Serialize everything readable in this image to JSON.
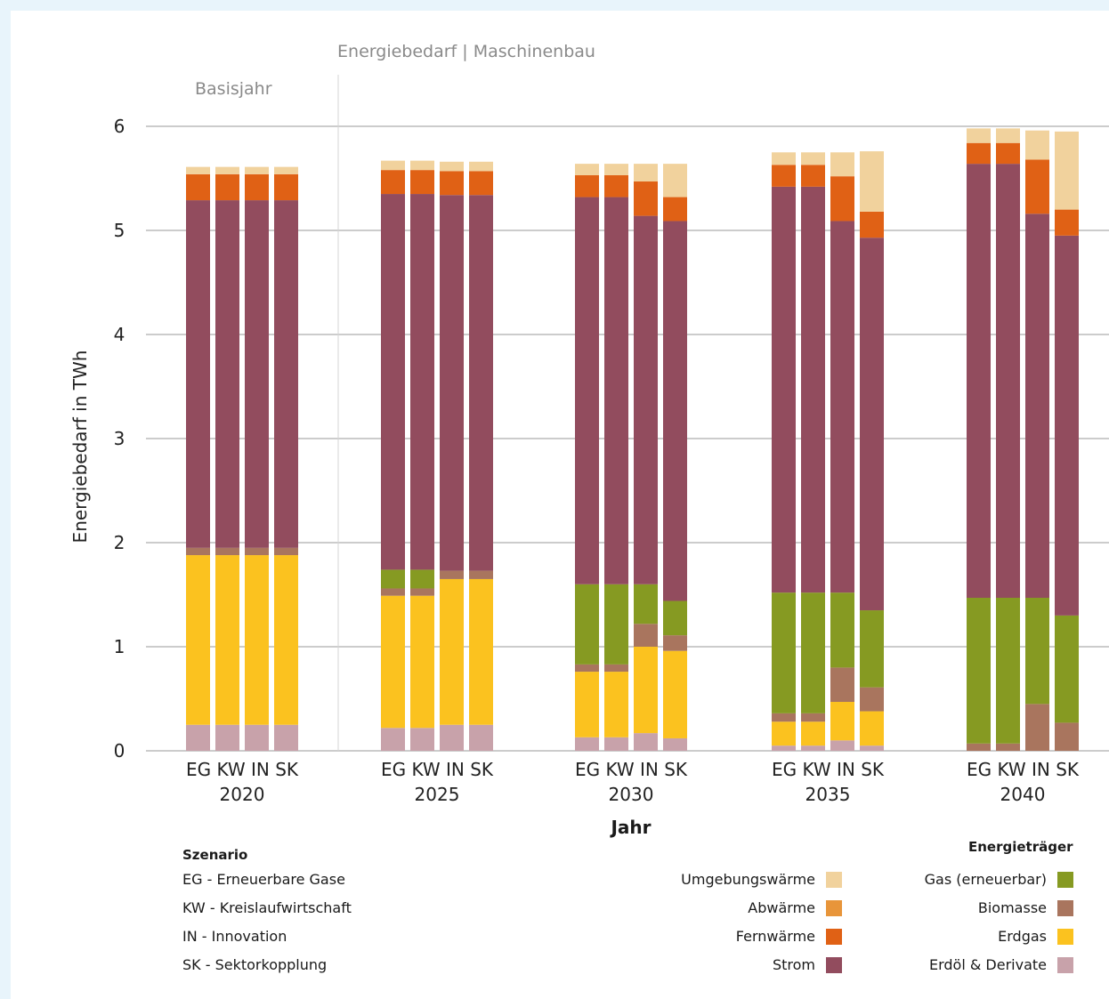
{
  "chart_data": {
    "type": "bar",
    "stacked": true,
    "title": "Energiebedarf | Maschinenbau",
    "annotation": "Basisjahr",
    "ylabel": "Energiebedarf in TWh",
    "xlabel": "Jahr",
    "ylim": [
      0,
      6
    ],
    "yticks": [
      0,
      1,
      2,
      3,
      4,
      5,
      6
    ],
    "grid": true,
    "groups": [
      "2020",
      "2025",
      "2030",
      "2035",
      "2040"
    ],
    "scenarios": [
      "EG",
      "KW",
      "IN",
      "SK"
    ],
    "scenario_label": "EG KW IN SK",
    "series": [
      {
        "name": "Erdöl & Derivate",
        "color": "#c8a2aa",
        "values": [
          [
            0.25,
            0.25,
            0.25,
            0.25
          ],
          [
            0.22,
            0.22,
            0.25,
            0.25
          ],
          [
            0.13,
            0.13,
            0.17,
            0.12
          ],
          [
            0.05,
            0.05,
            0.1,
            0.05
          ],
          [
            0,
            0,
            0,
            0
          ]
        ]
      },
      {
        "name": "Erdgas",
        "color": "#fbc21f",
        "values": [
          [
            1.63,
            1.63,
            1.63,
            1.63
          ],
          [
            1.27,
            1.27,
            1.4,
            1.4
          ],
          [
            0.63,
            0.63,
            0.83,
            0.84
          ],
          [
            0.23,
            0.23,
            0.37,
            0.33
          ],
          [
            0,
            0,
            0,
            0
          ]
        ]
      },
      {
        "name": "Biomasse",
        "color": "#a9755e",
        "values": [
          [
            0.07,
            0.07,
            0.07,
            0.07
          ],
          [
            0.07,
            0.07,
            0.08,
            0.08
          ],
          [
            0.07,
            0.07,
            0.22,
            0.15
          ],
          [
            0.08,
            0.08,
            0.33,
            0.23
          ],
          [
            0.07,
            0.07,
            0.45,
            0.27
          ]
        ]
      },
      {
        "name": "Gas (erneuerbar)",
        "color": "#869a22",
        "values": [
          [
            0,
            0,
            0,
            0
          ],
          [
            0.18,
            0.18,
            0,
            0
          ],
          [
            0.77,
            0.77,
            0.38,
            0.33
          ],
          [
            1.16,
            1.16,
            0.72,
            0.74
          ],
          [
            1.4,
            1.4,
            1.02,
            1.03
          ]
        ]
      },
      {
        "name": "Strom",
        "color": "#924c5e",
        "values": [
          [
            3.34,
            3.34,
            3.34,
            3.34
          ],
          [
            3.61,
            3.61,
            3.61,
            3.61
          ],
          [
            3.72,
            3.72,
            3.54,
            3.65
          ],
          [
            3.9,
            3.9,
            3.57,
            3.58
          ],
          [
            4.17,
            4.17,
            3.69,
            3.65
          ]
        ]
      },
      {
        "name": "Fernwärme",
        "color": "#e06115",
        "values": [
          [
            0.25,
            0.25,
            0.25,
            0.25
          ],
          [
            0.23,
            0.23,
            0.23,
            0.23
          ],
          [
            0.21,
            0.21,
            0.33,
            0.23
          ],
          [
            0.21,
            0.21,
            0.43,
            0.25
          ],
          [
            0.2,
            0.2,
            0.52,
            0.25
          ]
        ]
      },
      {
        "name": "Abwärme",
        "color": "#e8953a",
        "values": [
          [
            0,
            0,
            0,
            0
          ],
          [
            0,
            0,
            0,
            0
          ],
          [
            0,
            0,
            0,
            0
          ],
          [
            0,
            0,
            0,
            0
          ],
          [
            0,
            0,
            0,
            0
          ]
        ]
      },
      {
        "name": "Umgebungswärme",
        "color": "#f1d29d",
        "values": [
          [
            0.07,
            0.07,
            0.07,
            0.07
          ],
          [
            0.09,
            0.09,
            0.09,
            0.09
          ],
          [
            0.11,
            0.11,
            0.17,
            0.32
          ],
          [
            0.12,
            0.12,
            0.23,
            0.58
          ],
          [
            0.14,
            0.14,
            0.28,
            0.75
          ]
        ]
      }
    ]
  },
  "legend": {
    "scenario_title": "Szenario",
    "scenarios": [
      "EG - Erneuerbare Gase",
      "KW - Kreislaufwirtschaft",
      "IN - Innovation",
      "SK - Sektorkopplung"
    ],
    "carrier_title": "Energieträger",
    "col1": [
      {
        "label": "Umgebungswärme",
        "color": "#f1d29d"
      },
      {
        "label": "Abwärme",
        "color": "#e8953a"
      },
      {
        "label": "Fernwärme",
        "color": "#e06115"
      },
      {
        "label": "Strom",
        "color": "#924c5e"
      }
    ],
    "col2": [
      {
        "label": "Gas (erneuerbar)",
        "color": "#869a22"
      },
      {
        "label": "Biomasse",
        "color": "#a9755e"
      },
      {
        "label": "Erdgas",
        "color": "#fbc21f"
      },
      {
        "label": "Erdöl & Derivate",
        "color": "#c8a2aa"
      }
    ]
  }
}
